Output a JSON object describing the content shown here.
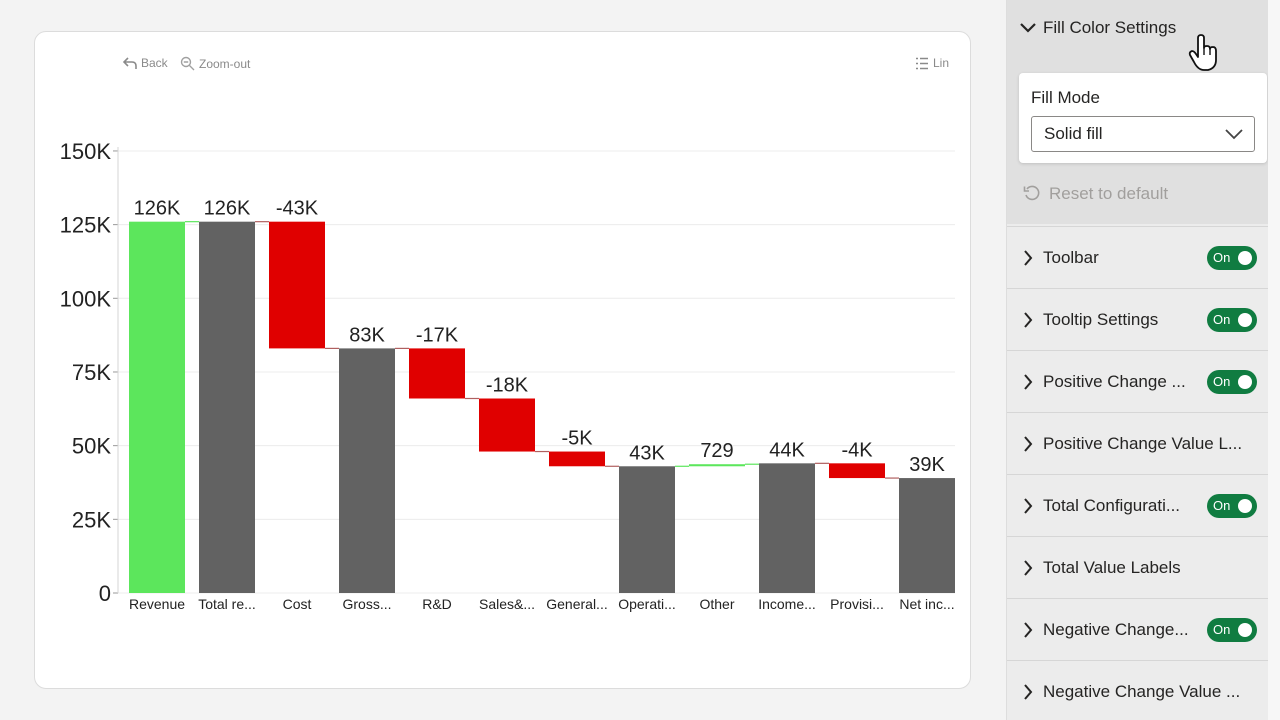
{
  "chart_toolbar": {
    "back": "Back",
    "zoom_out": "Zoom-out",
    "lin": "Lin"
  },
  "chart_data": {
    "type": "bar",
    "subtype": "waterfall",
    "categories": [
      "Revenue",
      "Total re...",
      "Cost",
      "Gross...",
      "R&D",
      "Sales&...",
      "General...",
      "Operati...",
      "Other",
      "Income...",
      "Provisi...",
      "Net inc..."
    ],
    "value_labels": [
      "126K",
      "126K",
      "-43K",
      "83K",
      "-17K",
      "-18K",
      "-5K",
      "43K",
      "729",
      "44K",
      "-4K",
      "39K"
    ],
    "bars": [
      {
        "kind": "increase",
        "start": 0,
        "end": 126
      },
      {
        "kind": "total",
        "start": 0,
        "end": 126
      },
      {
        "kind": "decrease",
        "start": 126,
        "end": 83
      },
      {
        "kind": "total",
        "start": 0,
        "end": 83
      },
      {
        "kind": "decrease",
        "start": 83,
        "end": 66
      },
      {
        "kind": "decrease",
        "start": 66,
        "end": 48
      },
      {
        "kind": "decrease",
        "start": 48,
        "end": 43
      },
      {
        "kind": "total",
        "start": 0,
        "end": 43
      },
      {
        "kind": "increase",
        "start": 43,
        "end": 43.7
      },
      {
        "kind": "total",
        "start": 0,
        "end": 44
      },
      {
        "kind": "decrease",
        "start": 44,
        "end": 39
      },
      {
        "kind": "total",
        "start": 0,
        "end": 39
      }
    ],
    "y_ticks": [
      0,
      25,
      50,
      75,
      100,
      125,
      150
    ],
    "y_tick_labels": [
      "0",
      "25K",
      "50K",
      "75K",
      "100K",
      "125K",
      "150K"
    ],
    "ylim": [
      0,
      150
    ],
    "units": "thousands",
    "grid": true,
    "colors": {
      "increase": "#5ce65c",
      "decrease": "#e00000",
      "total": "#626262",
      "connector": "#b06060",
      "positive_connector": "#5ce65c"
    }
  },
  "settings": {
    "fill_section": {
      "title": "Fill Color Settings",
      "fill_mode_label": "Fill Mode",
      "fill_mode_value": "Solid fill",
      "reset_label": "Reset to default"
    },
    "rows": [
      {
        "label": "Toolbar",
        "toggle": "On"
      },
      {
        "label": "Tooltip Settings",
        "toggle": "On"
      },
      {
        "label": "Positive Change ...",
        "toggle": "On"
      },
      {
        "label": "Positive Change Value L...",
        "toggle": ""
      },
      {
        "label": "Total Configurati...",
        "toggle": "On"
      },
      {
        "label": "Total Value Labels",
        "toggle": ""
      },
      {
        "label": "Negative Change...",
        "toggle": "On"
      },
      {
        "label": "Negative Change Value ...",
        "toggle": ""
      }
    ]
  }
}
